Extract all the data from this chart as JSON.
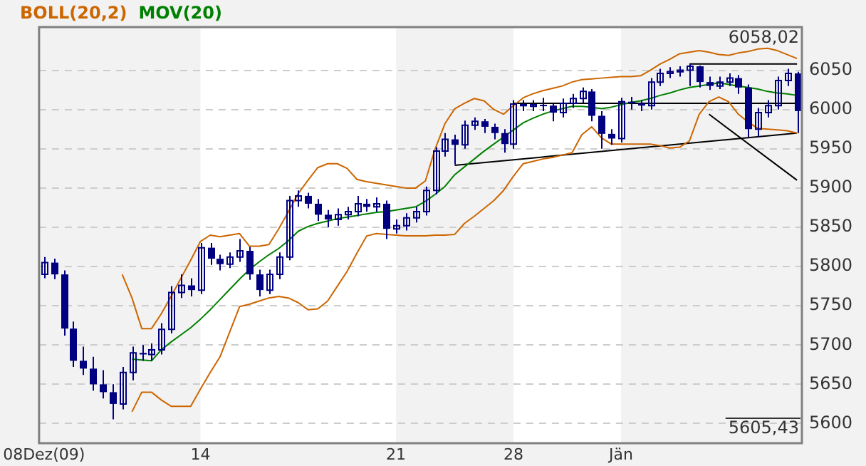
{
  "chart_data": {
    "type": "candlestick",
    "color": "#000080",
    "categories": [
      "08Dez(09)",
      null,
      null,
      null,
      null,
      null,
      null,
      null,
      null,
      null,
      null,
      null,
      null,
      null,
      null,
      null,
      "14",
      null,
      null,
      null,
      null,
      null,
      null,
      null,
      null,
      null,
      null,
      null,
      null,
      null,
      null,
      null,
      null,
      null,
      null,
      null,
      "21",
      null,
      null,
      null,
      null,
      null,
      null,
      null,
      null,
      null,
      null,
      null,
      "28",
      null,
      null,
      null,
      null,
      null,
      null,
      null,
      null,
      null,
      null,
      "Jän",
      null,
      null,
      null,
      null,
      null,
      null,
      null,
      null,
      null,
      null,
      null,
      null,
      null,
      null,
      null,
      null,
      null,
      null
    ],
    "ohlc": [
      [
        5790,
        5812,
        5785,
        5805
      ],
      [
        5805,
        5810,
        5784,
        5790
      ],
      [
        5790,
        5795,
        5712,
        5721
      ],
      [
        5721,
        5730,
        5672,
        5680
      ],
      [
        5680,
        5698,
        5662,
        5670
      ],
      [
        5670,
        5685,
        5642,
        5650
      ],
      [
        5650,
        5668,
        5632,
        5640
      ],
      [
        5640,
        5650,
        5605.43,
        5625
      ],
      [
        5625,
        5672,
        5618,
        5665
      ],
      [
        5665,
        5698,
        5655,
        5690
      ],
      [
        5690,
        5700,
        5680,
        5688
      ],
      [
        5688,
        5702,
        5680,
        5694
      ],
      [
        5694,
        5728,
        5688,
        5720
      ],
      [
        5720,
        5775,
        5715,
        5767
      ],
      [
        5767,
        5790,
        5760,
        5776
      ],
      [
        5776,
        5785,
        5762,
        5770
      ],
      [
        5770,
        5830,
        5765,
        5824
      ],
      [
        5824,
        5830,
        5802,
        5810
      ],
      [
        5810,
        5815,
        5795,
        5803
      ],
      [
        5803,
        5818,
        5798,
        5812
      ],
      [
        5812,
        5835,
        5806,
        5820
      ],
      [
        5820,
        5825,
        5783,
        5790
      ],
      [
        5790,
        5796,
        5762,
        5770
      ],
      [
        5770,
        5796,
        5765,
        5790
      ],
      [
        5790,
        5818,
        5784,
        5812
      ],
      [
        5812,
        5890,
        5808,
        5884
      ],
      [
        5884,
        5897,
        5876,
        5890
      ],
      [
        5890,
        5894,
        5874,
        5880
      ],
      [
        5880,
        5886,
        5858,
        5866
      ],
      [
        5866,
        5872,
        5850,
        5860
      ],
      [
        5860,
        5874,
        5852,
        5866
      ],
      [
        5866,
        5876,
        5860,
        5870
      ],
      [
        5870,
        5890,
        5864,
        5880
      ],
      [
        5880,
        5886,
        5870,
        5876
      ],
      [
        5876,
        5888,
        5870,
        5880
      ],
      [
        5880,
        5884,
        5835,
        5848
      ],
      [
        5848,
        5860,
        5842,
        5852
      ],
      [
        5852,
        5868,
        5846,
        5862
      ],
      [
        5862,
        5876,
        5856,
        5870
      ],
      [
        5870,
        5902,
        5865,
        5897
      ],
      [
        5897,
        5952,
        5892,
        5947
      ],
      [
        5947,
        5970,
        5940,
        5962
      ],
      [
        5962,
        5968,
        5930,
        5955
      ],
      [
        5955,
        5986,
        5950,
        5980
      ],
      [
        5980,
        5990,
        5974,
        5985
      ],
      [
        5985,
        5988,
        5970,
        5978
      ],
      [
        5978,
        5982,
        5962,
        5970
      ],
      [
        5970,
        5975,
        5945,
        5956
      ],
      [
        5956,
        6012,
        5950,
        6007
      ],
      [
        6007,
        6012,
        5998,
        6004
      ],
      [
        6004,
        6012,
        5998,
        6006
      ],
      [
        6006,
        6015,
        5998,
        6005
      ],
      [
        6005,
        6008,
        5985,
        5996
      ],
      [
        5996,
        6014,
        5990,
        6008
      ],
      [
        6008,
        6020,
        6002,
        6014
      ],
      [
        6014,
        6028,
        6008,
        6023
      ],
      [
        6023,
        6026,
        5985,
        5992
      ],
      [
        5992,
        5998,
        5950,
        5969
      ],
      [
        5969,
        5975,
        5955,
        5963
      ],
      [
        5963,
        6015,
        5958,
        6010
      ],
      [
        6010,
        6016,
        6000,
        6008
      ],
      [
        6008,
        6012,
        5998,
        6005
      ],
      [
        6005,
        6040,
        6000,
        6035
      ],
      [
        6035,
        6052,
        6030,
        6046
      ],
      [
        6046,
        6054,
        6040,
        6048
      ],
      [
        6048,
        6055,
        6042,
        6050
      ],
      [
        6050,
        6058.02,
        6030,
        6055
      ],
      [
        6055,
        6056,
        6028,
        6035
      ],
      [
        6035,
        6042,
        6025,
        6030
      ],
      [
        6030,
        6042,
        6026,
        6035
      ],
      [
        6035,
        6046,
        6030,
        6040
      ],
      [
        6040,
        6044,
        6020,
        6028
      ],
      [
        6028,
        6032,
        5965,
        5975
      ],
      [
        5975,
        6002,
        5965,
        5996
      ],
      [
        5996,
        6012,
        5990,
        6005
      ],
      [
        6005,
        6042,
        6000,
        6037
      ],
      [
        6037,
        6052,
        6030,
        6046
      ],
      [
        6046,
        6048,
        5970,
        5998
      ]
    ],
    "series": [
      {
        "type": "line",
        "name": "BOLL(20,2)",
        "color": "#cc6600",
        "values": [
          null,
          null,
          null,
          null,
          null,
          null,
          null,
          null,
          5790,
          5760,
          5721,
          5721,
          5740,
          5762,
          5785,
          5808,
          5832,
          5840,
          5838,
          5840,
          5842,
          5826,
          5826,
          5828,
          5848,
          5870,
          5893,
          5910,
          5926,
          5931,
          5931,
          5925,
          5911,
          5908,
          5906,
          5904,
          5902,
          5900,
          5900,
          5909,
          5950,
          5982,
          6001,
          6008,
          6014,
          6011,
          6000,
          5994,
          6005,
          6015,
          6020,
          6024,
          6027,
          6030,
          6035,
          6038,
          6039,
          6040,
          6041,
          6042,
          6042,
          6043,
          6050,
          6058,
          6064,
          6071,
          6073,
          6075,
          6073,
          6070,
          6069,
          6072,
          6074,
          6077,
          6078,
          6075,
          6070,
          6065
        ]
      },
      {
        "type": "line",
        "color": "#cc6600",
        "values": [
          null,
          null,
          null,
          null,
          null,
          null,
          null,
          null,
          null,
          5615,
          5640,
          5640,
          5630,
          5622,
          5622,
          5622,
          5644,
          5665,
          5685,
          5717,
          5749,
          5752,
          5756,
          5760,
          5762,
          5760,
          5754,
          5745,
          5746,
          5756,
          5775,
          5794,
          5817,
          5839,
          5842,
          5841,
          5840,
          5839,
          5839,
          5839,
          5840,
          5840,
          5841,
          5855,
          5864,
          5874,
          5884,
          5897,
          5915,
          5931,
          5934,
          5937,
          5939,
          5942,
          5945,
          5968,
          5978,
          5964,
          5956,
          5956,
          5956,
          5956,
          5956,
          5954,
          5951,
          5952,
          5960,
          5994,
          6010,
          6016,
          6010,
          5994,
          5984,
          5976,
          5975,
          5974,
          5973,
          5970
        ]
      },
      {
        "type": "line",
        "name": "MOV(20)",
        "color": "#008000",
        "values": [
          null,
          null,
          null,
          null,
          null,
          null,
          null,
          null,
          null,
          5682,
          5681,
          5680,
          5694,
          5704,
          5713,
          5722,
          5733,
          5745,
          5758,
          5771,
          5784,
          5796,
          5806,
          5815,
          5823,
          5833,
          5845,
          5851,
          5855,
          5858,
          5861,
          5863,
          5865,
          5867,
          5869,
          5870,
          5872,
          5874,
          5876,
          5883,
          5892,
          5902,
          5917,
          5927,
          5937,
          5947,
          5956,
          5965,
          5974,
          5983,
          5989,
          5994,
          5998,
          6001,
          6004,
          6004,
          6003,
          6001,
          6003,
          6006,
          6009,
          6011,
          6014,
          6018,
          6021,
          6025,
          6028,
          6030,
          6032,
          6034,
          6032,
          6030,
          6028,
          6026,
          6023,
          6021,
          6020,
          6018
        ]
      },
      {
        "type": "line",
        "color": "#000000",
        "values": [
          null,
          null,
          null,
          null,
          null,
          null,
          null,
          null,
          null,
          null,
          null,
          null,
          null,
          null,
          null,
          null,
          null,
          null,
          null,
          null,
          null,
          null,
          null,
          null,
          null,
          null,
          null,
          null,
          null,
          null,
          null,
          null,
          null,
          null,
          null,
          null,
          null,
          null,
          null,
          null,
          null,
          null,
          5929,
          null,
          null,
          null,
          null,
          null,
          null,
          null,
          null,
          null,
          null,
          null,
          null,
          null,
          null,
          null,
          null,
          null,
          null,
          null,
          null,
          null,
          null,
          null,
          null,
          null,
          null,
          null,
          null,
          null,
          null,
          null,
          null,
          null,
          null,
          5970
        ]
      },
      {
        "type": "line",
        "color": "#000000",
        "values": [
          null,
          null,
          null,
          null,
          null,
          null,
          null,
          null,
          null,
          null,
          null,
          null,
          null,
          null,
          null,
          null,
          null,
          null,
          null,
          null,
          null,
          null,
          null,
          null,
          null,
          null,
          null,
          null,
          null,
          null,
          null,
          null,
          null,
          null,
          null,
          null,
          null,
          null,
          null,
          null,
          null,
          null,
          null,
          null,
          null,
          null,
          null,
          null,
          6008,
          null,
          null,
          null,
          null,
          null,
          null,
          null,
          null,
          null,
          null,
          null,
          null,
          null,
          null,
          null,
          null,
          null,
          null,
          null,
          null,
          null,
          null,
          null,
          null,
          null,
          null,
          null,
          null,
          6008
        ]
      },
      {
        "type": "line",
        "color": "#000000",
        "values": [
          null,
          null,
          null,
          null,
          null,
          null,
          null,
          null,
          null,
          null,
          null,
          null,
          null,
          null,
          null,
          null,
          null,
          null,
          null,
          null,
          null,
          null,
          null,
          null,
          null,
          null,
          null,
          null,
          null,
          null,
          null,
          null,
          null,
          null,
          null,
          null,
          null,
          null,
          null,
          null,
          null,
          null,
          null,
          null,
          null,
          null,
          null,
          null,
          null,
          null,
          null,
          null,
          null,
          null,
          null,
          null,
          null,
          null,
          null,
          null,
          null,
          null,
          null,
          null,
          null,
          null,
          6058,
          null,
          null,
          null,
          null,
          null,
          null,
          null,
          null,
          null,
          null,
          6058
        ]
      },
      {
        "type": "line",
        "color": "#000000",
        "values": [
          null,
          null,
          null,
          null,
          null,
          null,
          null,
          null,
          null,
          null,
          null,
          null,
          null,
          null,
          null,
          null,
          null,
          null,
          null,
          null,
          null,
          null,
          null,
          null,
          null,
          null,
          null,
          null,
          null,
          null,
          null,
          null,
          null,
          null,
          null,
          null,
          null,
          null,
          null,
          null,
          null,
          null,
          null,
          null,
          null,
          null,
          null,
          null,
          null,
          null,
          null,
          null,
          null,
          null,
          null,
          null,
          null,
          null,
          null,
          null,
          null,
          null,
          null,
          null,
          null,
          null,
          null,
          null,
          5994,
          null,
          null,
          null,
          null,
          null,
          null,
          null,
          null,
          5910
        ]
      }
    ],
    "ylim": [
      5575,
      6105
    ],
    "yticks": [
      5600,
      5650,
      5700,
      5750,
      5800,
      5850,
      5900,
      5950,
      6000,
      6050
    ],
    "bands": [
      {
        "axis": "x",
        "from": "14",
        "to": "21",
        "color": "#ffffff"
      },
      {
        "axis": "x",
        "from": "28",
        "to": "Jän",
        "color": "#ffffff"
      }
    ],
    "annotations": [
      "6058,02",
      "5605,43"
    ],
    "grid": "y",
    "legend": "top left"
  }
}
